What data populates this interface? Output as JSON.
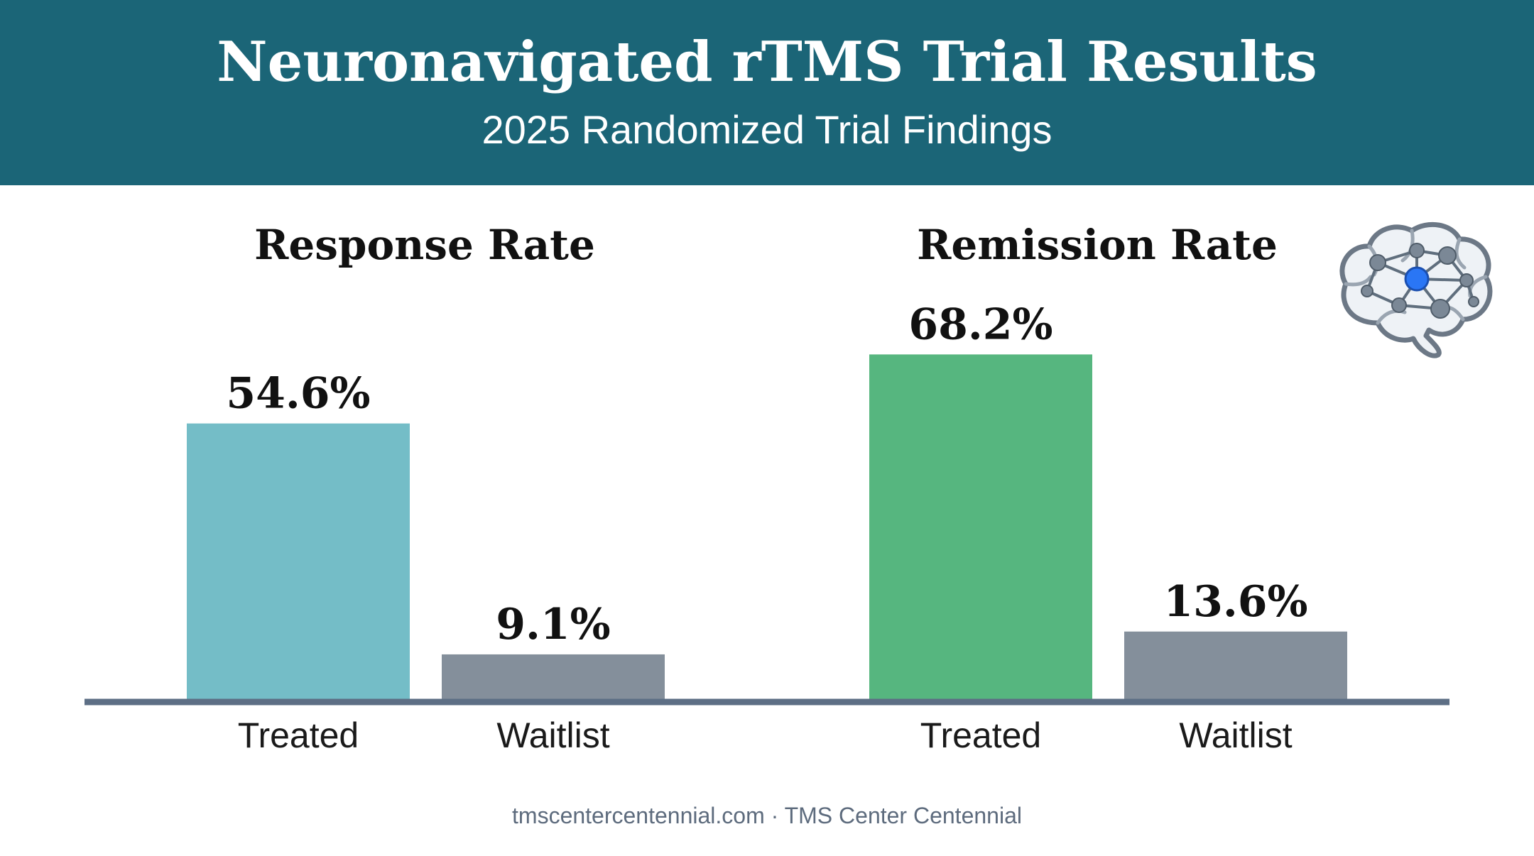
{
  "header": {
    "title": "Neuronavigated rTMS Trial Results",
    "subtitle": "2025 Randomized Trial Findings"
  },
  "chart_data": [
    {
      "type": "bar",
      "title": "Response Rate",
      "categories": [
        "Treated",
        "Waitlist"
      ],
      "values": [
        54.6,
        9.1
      ],
      "value_labels": [
        "54.6%",
        "9.1%"
      ],
      "colors": [
        "#74bdc7",
        "#848f9b"
      ],
      "ylim": [
        0,
        100
      ],
      "grid": false
    },
    {
      "type": "bar",
      "title": "Remission Rate",
      "categories": [
        "Treated",
        "Waitlist"
      ],
      "values": [
        68.2,
        13.6
      ],
      "value_labels": [
        "68.2%",
        "13.6%"
      ],
      "colors": [
        "#56b67f",
        "#848f9b"
      ],
      "ylim": [
        0,
        100
      ],
      "grid": false
    }
  ],
  "colors": {
    "header_bg": "#1b6577",
    "baseline": "#5d6f85",
    "brain_accent": "#2a76f5"
  },
  "icons": {
    "brain": "brain-network-icon"
  },
  "footer": {
    "text": "tmscentercentennial.com · TMS Center Centennial"
  }
}
